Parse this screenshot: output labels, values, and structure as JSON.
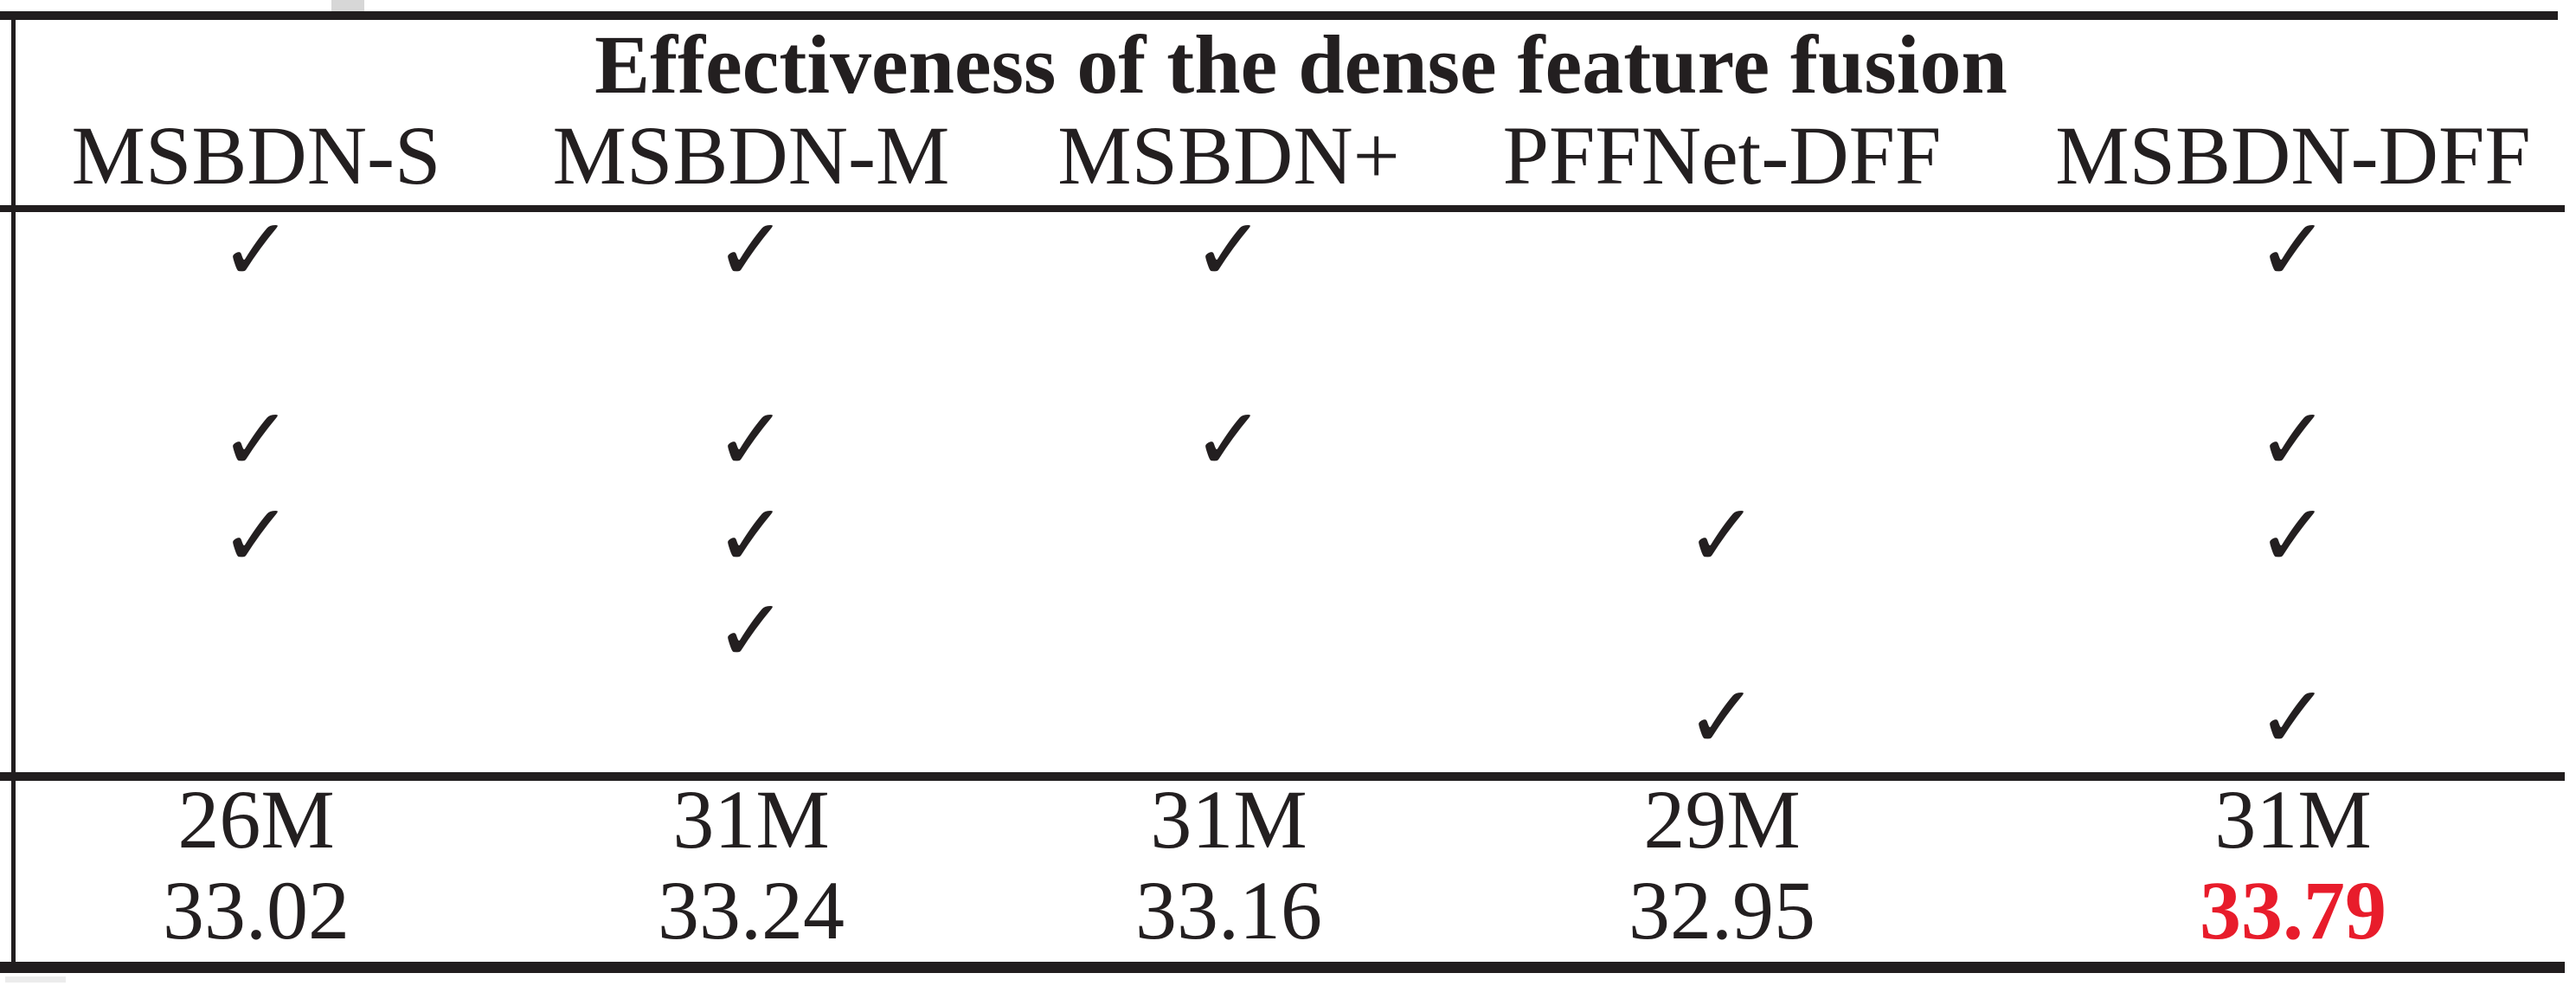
{
  "table": {
    "title": "Effectiveness of the dense feature fusion",
    "columns": [
      "MSBDN-S",
      "MSBDN-M",
      "MSBDN+",
      "PFFNet-DFF",
      "MSBDN-DFF"
    ],
    "check_symbol": "✓",
    "check_rows": [
      [
        "✓",
        "✓",
        "✓",
        "",
        "✓"
      ],
      [
        "",
        "",
        "",
        "",
        ""
      ],
      [
        "✓",
        "✓",
        "✓",
        "",
        "✓"
      ],
      [
        "✓",
        "✓",
        "",
        "✓",
        "✓"
      ],
      [
        "",
        "✓",
        "",
        "",
        ""
      ],
      [
        "",
        "",
        "",
        "✓",
        "✓"
      ]
    ],
    "params_row": [
      "26M",
      "31M",
      "31M",
      "29M",
      "31M"
    ],
    "psnr_row": [
      "33.02",
      "33.24",
      "33.16",
      "32.95",
      "33.79"
    ],
    "highlight": {
      "value": "33.79",
      "column": "MSBDN-DFF"
    }
  },
  "colors": {
    "background": "#ffffff",
    "ink": "#231f20",
    "rule": "#211d1e",
    "highlight_red": "#e81c2b",
    "crop_artifact_gray": "#d7d7d7"
  }
}
